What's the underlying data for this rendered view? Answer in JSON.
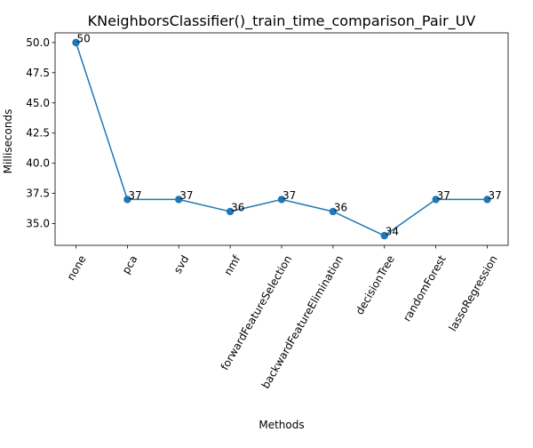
{
  "chart_data": {
    "type": "line",
    "title": "KNeighborsClassifier()_train_time_comparison_Pair_UV",
    "xlabel": "Methods",
    "ylabel": "Milliseconds",
    "categories": [
      "none",
      "pca",
      "svd",
      "nmf",
      "forwardFeatureSelection",
      "backwardFeatureElimination",
      "decisionTree",
      "randomForest",
      "lassoRegression"
    ],
    "values": [
      50,
      37,
      37,
      36,
      37,
      36,
      34,
      37,
      37
    ],
    "data_labels": [
      "50",
      "37",
      "37",
      "36",
      "37",
      "36",
      "34",
      "37",
      "37"
    ],
    "y_ticks": [
      35.0,
      37.5,
      40.0,
      42.5,
      45.0,
      47.5,
      50.0
    ],
    "y_tick_labels": [
      "35.0",
      "37.5",
      "40.0",
      "42.5",
      "45.0",
      "47.5",
      "50.0"
    ],
    "ylim": [
      33.2,
      50.8
    ],
    "grid": false,
    "line_color": "#1f77b4",
    "marker": "circle"
  }
}
